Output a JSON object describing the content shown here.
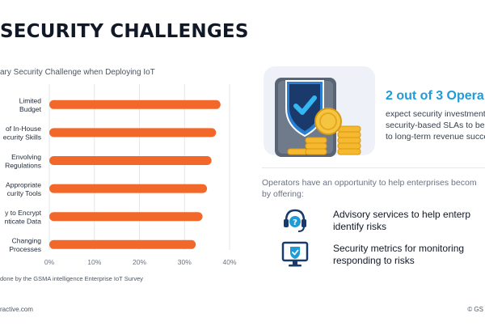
{
  "slide": {
    "title": "SECURITY CHALLENGES",
    "subtitle": "ary Security Challenge when Deploying IoT",
    "footnote": "done by the GSMA intelligence Enterprise IoT Survey",
    "site": "ractive.com",
    "copyright": "© GS"
  },
  "chart_data": {
    "type": "bar",
    "orientation": "horizontal",
    "categories": [
      [
        "Limited",
        "Budget"
      ],
      [
        "of In-House",
        "ecurity Skills"
      ],
      [
        "Envolving",
        "Regulations"
      ],
      [
        "Appropriate",
        "curity Tools"
      ],
      [
        "y to Encrypt",
        "nticate Data"
      ],
      [
        "Changing",
        "Processes"
      ]
    ],
    "values": [
      38,
      37,
      36,
      35,
      34,
      32.5
    ],
    "xlim": [
      0,
      40
    ],
    "xticks": [
      "0%",
      "10%",
      "20%",
      "30%",
      "40%"
    ],
    "bar_color": "#f2682a",
    "grid": true
  },
  "panel": {
    "stat_head": "2 out of 3 Opera",
    "stat_lines": [
      "expect security investment",
      "security-based SLAs to be in",
      "to long-term revenue succe"
    ],
    "intro_lines": [
      "Operators have an opportunity to help enterprises becom",
      "by offering:"
    ],
    "offers": [
      {
        "icon": "headset-question-icon",
        "lines": [
          "Advisory services to help enterp",
          "identify risks"
        ]
      },
      {
        "icon": "monitor-shield-icon",
        "lines": [
          "Security metrics for monitoring",
          "responding to risks"
        ]
      }
    ],
    "colors": {
      "accent": "#1f9bd8",
      "shield": "#1a3a6b",
      "coin": "#f5b82e",
      "bar": "#f2682a"
    }
  }
}
